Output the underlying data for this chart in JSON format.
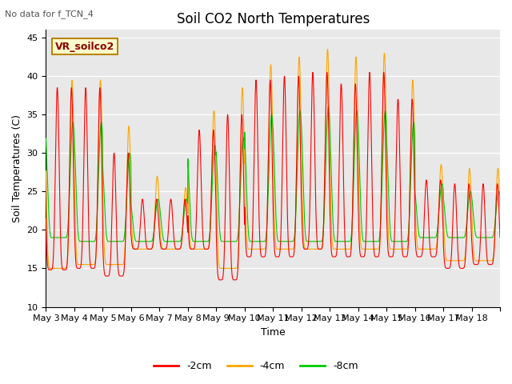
{
  "title": "Soil CO2 North Temperatures",
  "subtitle": "No data for f_TCN_4",
  "ylabel": "Soil Temperatures (C)",
  "xlabel": "Time",
  "ylim": [
    10,
    46
  ],
  "yticks": [
    10,
    15,
    20,
    25,
    30,
    35,
    40,
    45
  ],
  "legend_label": "VR_soilco2",
  "line_2cm_color": "#FF0000",
  "line_4cm_color": "#FFA500",
  "line_8cm_color": "#00CC00",
  "bg_color": "#E8E8E8",
  "series_labels": [
    "-2cm",
    "-4cm",
    "-8cm"
  ],
  "days": [
    "May 3",
    "May 4",
    "May 5",
    "May 6",
    "May 7",
    "May 8",
    "May 9",
    "May 10",
    "May 11",
    "May 12",
    "May 13",
    "May 14",
    "May 15",
    "May 16",
    "May 17",
    "May 18"
  ],
  "n_points_per_day": 144,
  "day_peaks_4cm": [
    39.5,
    39.5,
    33.5,
    27.0,
    25.5,
    35.5,
    38.5,
    41.5,
    42.5,
    43.5,
    42.5,
    43.0,
    39.5,
    28.5,
    28.0,
    28.0
  ],
  "day_peaks_2cm": [
    38.5,
    38.5,
    30.0,
    24.0,
    24.0,
    33.0,
    35.0,
    39.5,
    40.0,
    40.5,
    39.0,
    40.5,
    37.0,
    26.5,
    26.0,
    26.0
  ],
  "day_peaks_8cm": [
    34.0,
    34.0,
    30.0,
    24.0,
    24.0,
    31.0,
    32.0,
    35.0,
    35.5,
    36.0,
    35.5,
    35.5,
    34.0,
    26.0,
    25.0,
    25.0
  ],
  "day_min_2cm": [
    14.8,
    15.0,
    14.0,
    17.5,
    17.5,
    17.5,
    13.5,
    16.5,
    16.5,
    17.5,
    16.5,
    16.5,
    16.5,
    16.5,
    15.0,
    15.5
  ],
  "day_min_4cm": [
    15.0,
    15.5,
    15.5,
    17.5,
    17.5,
    17.5,
    15.0,
    17.5,
    17.5,
    17.5,
    17.5,
    17.5,
    17.5,
    17.5,
    16.0,
    16.0
  ],
  "day_min_8cm": [
    19.0,
    18.5,
    18.5,
    18.5,
    18.5,
    18.5,
    18.5,
    18.5,
    18.5,
    18.5,
    18.5,
    18.5,
    18.5,
    19.0,
    19.0,
    19.0
  ]
}
